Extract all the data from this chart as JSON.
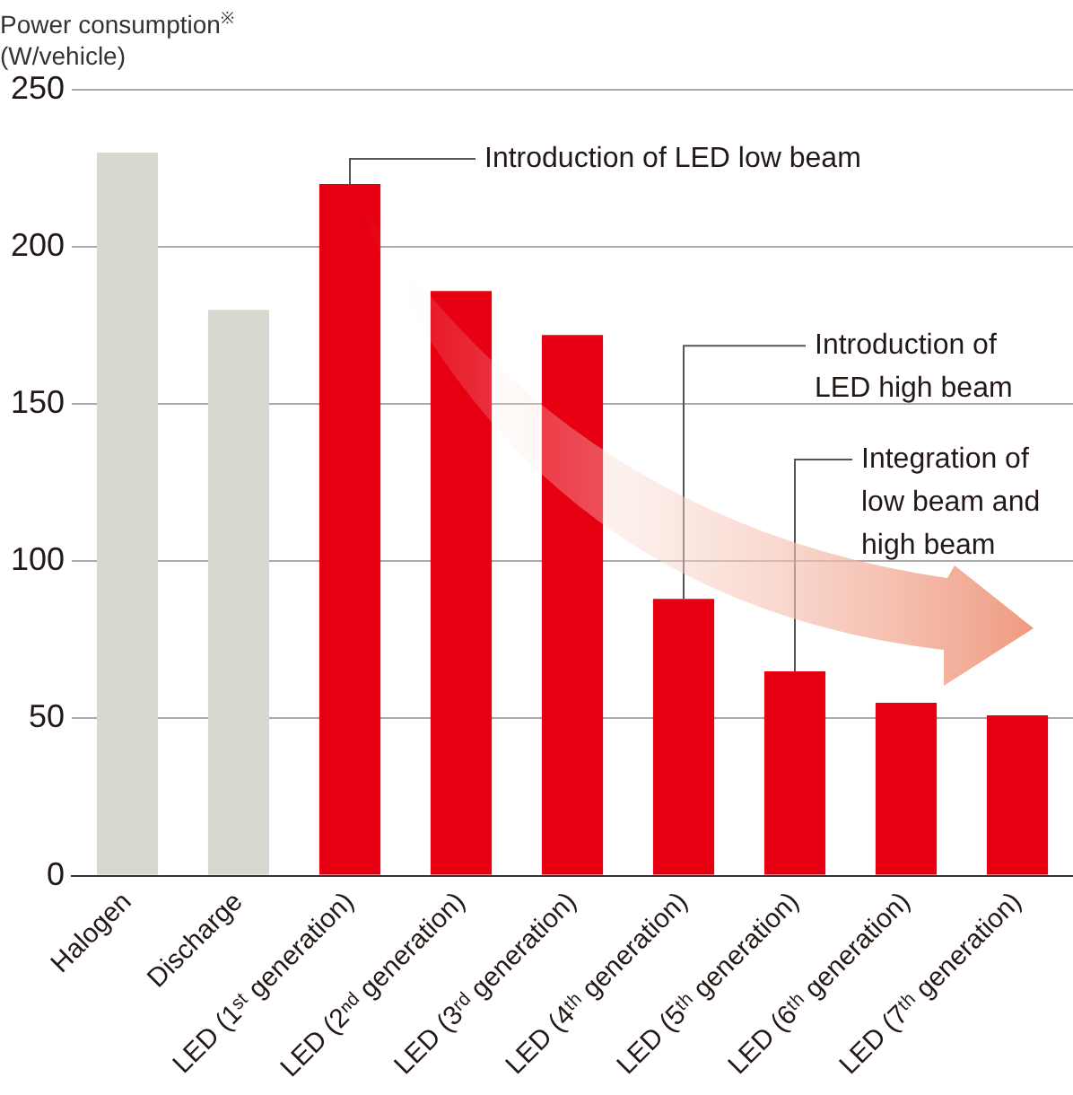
{
  "chart_data": {
    "type": "bar",
    "ylabel": "Power consumption$^{※}$\n(W/vehicle)",
    "categories": [
      "Halogen",
      "Discharge",
      "LED (1ˢᵗ generation)",
      "LED (2ⁿᵈ generation)",
      "LED (3ʳᵈ generation)",
      "LED (4ᵗʰ generation)",
      "LED (5ᵗʰ generation)",
      "LED (6ᵗʰ generation)",
      "LED (7ᵗʰ generation)"
    ],
    "values": [
      230,
      180,
      220,
      186,
      172,
      88,
      65,
      55,
      51
    ],
    "colors": [
      "#d8d8d0",
      "#d8d8d0",
      "#e60012",
      "#e60012",
      "#e60012",
      "#e60012",
      "#e60012",
      "#e60012",
      "#e60012"
    ],
    "ylim": [
      0,
      250
    ],
    "yticks": [
      0,
      50,
      100,
      150,
      200,
      250
    ],
    "grid": "y",
    "legend": false,
    "annotations": [
      {
        "text": "Introduction of LED low beam",
        "x": "LED (1ˢᵗ generation)",
        "y": 220
      },
      {
        "text": "Introduction of\nLED high beam",
        "x": "LED (4ᵗʰ generation)",
        "y": 88
      },
      {
        "text": "Integration of\nlow beam and\nhigh beam",
        "x": "LED (5ᵗʰ generation)",
        "y": 65
      }
    ]
  }
}
